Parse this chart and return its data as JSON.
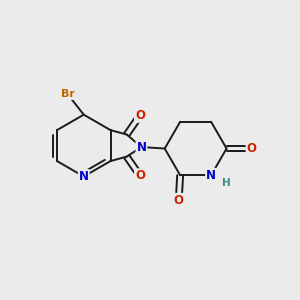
{
  "bg_color": "#ebebeb",
  "bond_color": "#1a1a1a",
  "atom_colors": {
    "N": "#0000cc",
    "O": "#cc2200",
    "Br": "#bb6600",
    "H": "#448888",
    "C": "#1a1a1a"
  },
  "figsize": [
    3.0,
    3.0
  ],
  "dpi": 100,
  "lw": 1.4,
  "fontsize": 8.5
}
